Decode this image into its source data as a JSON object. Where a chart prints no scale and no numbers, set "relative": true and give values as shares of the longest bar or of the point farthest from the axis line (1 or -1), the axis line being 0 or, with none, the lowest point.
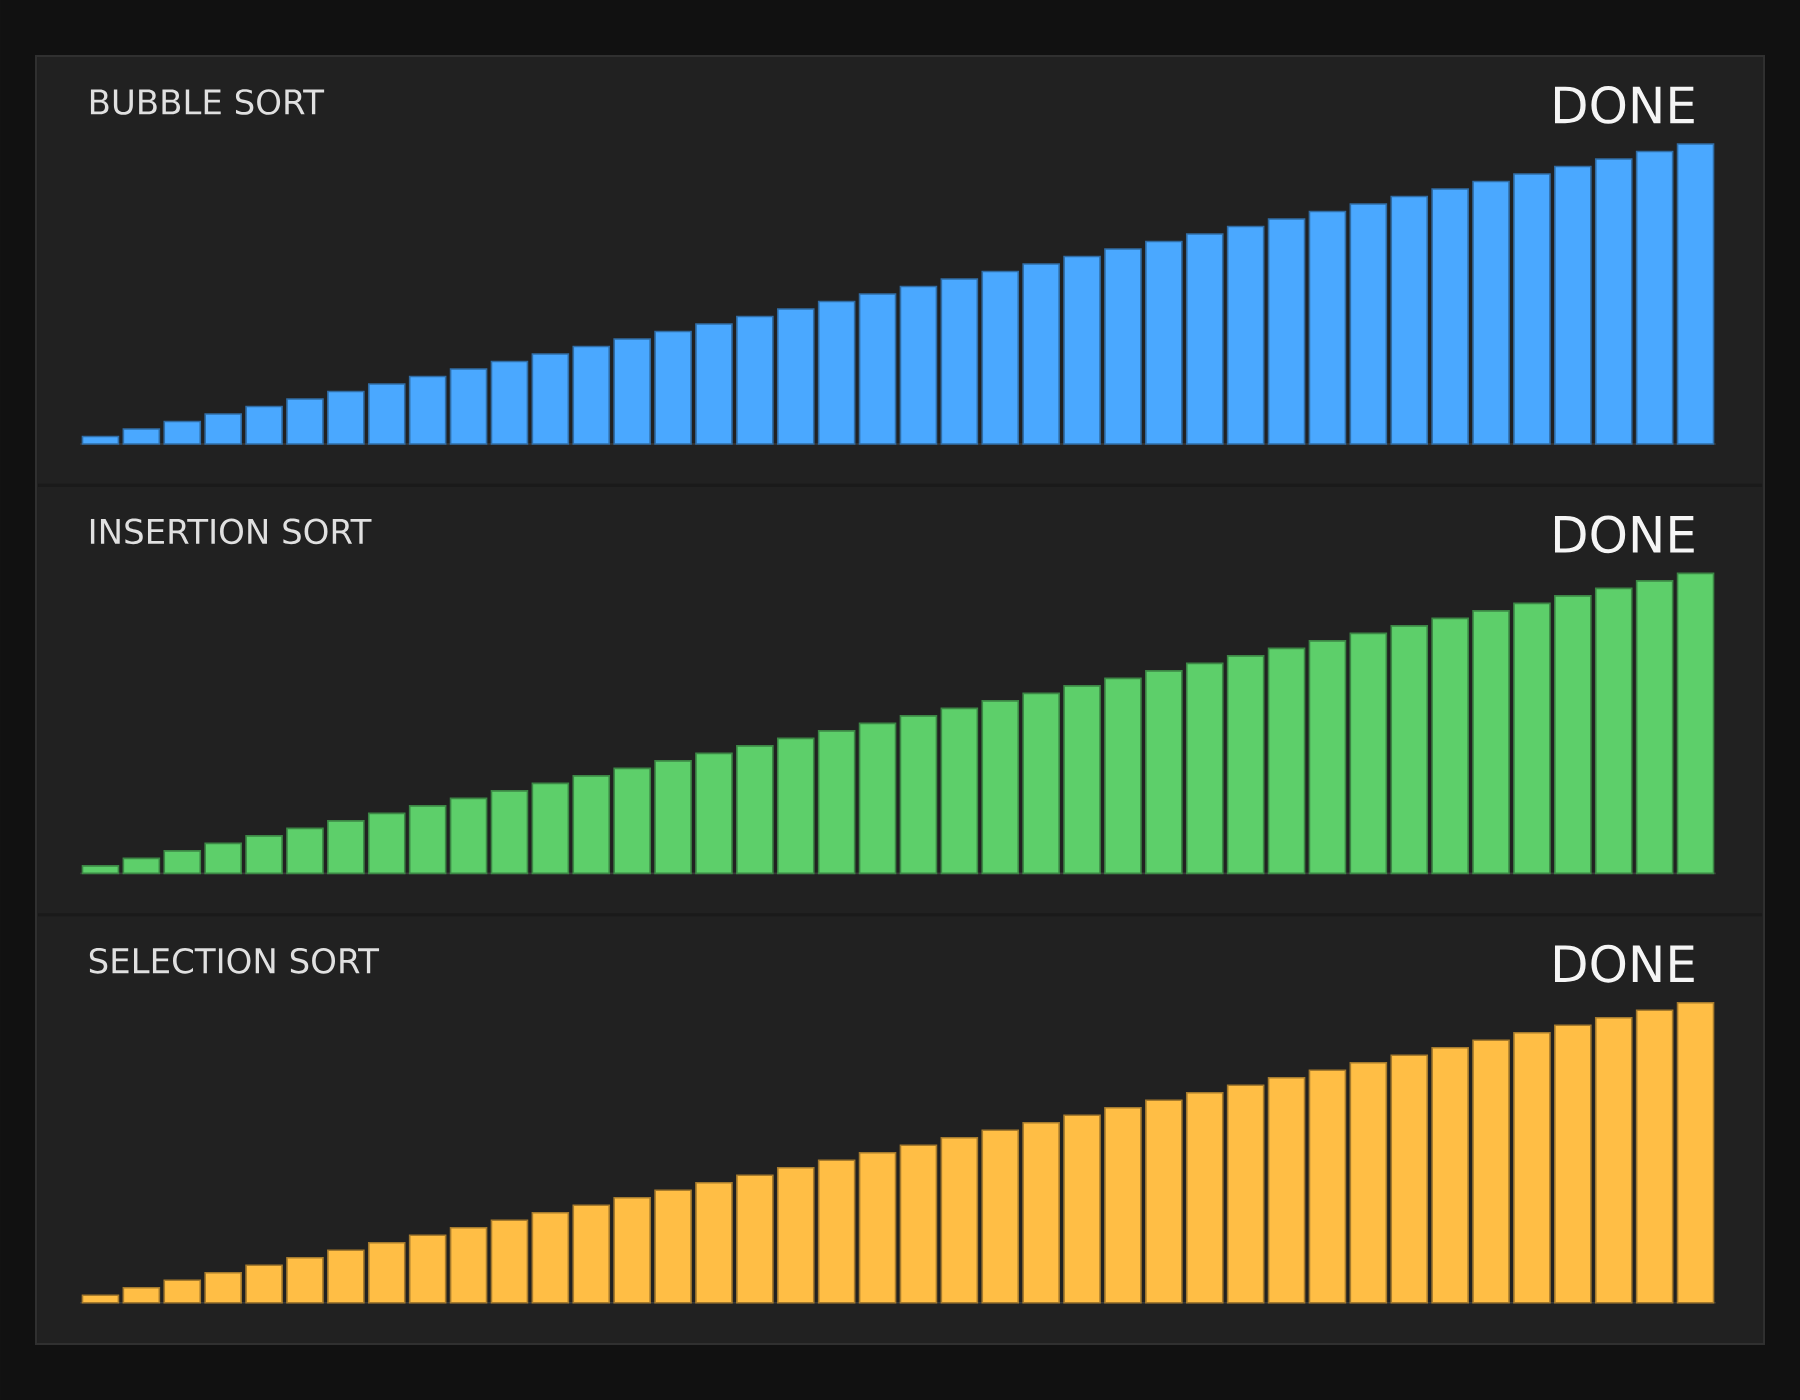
{
  "chart_data": [
    {
      "type": "bar",
      "title": "BUBBLE SORT",
      "annotations": [
        "DONE"
      ],
      "relative": true,
      "color": "#4aa8ff",
      "categories": [
        null,
        null,
        null,
        null,
        null,
        null,
        null,
        null,
        null,
        null,
        null,
        null,
        null,
        null,
        null,
        null,
        null,
        null,
        null,
        null,
        null,
        null,
        null,
        null,
        null,
        null,
        null,
        null,
        null,
        null,
        null,
        null,
        null,
        null,
        null,
        null,
        null,
        null,
        null,
        null
      ],
      "values": [
        0.025,
        0.05,
        0.075,
        0.1,
        0.125,
        0.15,
        0.175,
        0.2,
        0.225,
        0.25,
        0.275,
        0.3,
        0.325,
        0.35,
        0.375,
        0.4,
        0.425,
        0.45,
        0.475,
        0.5,
        0.525,
        0.55,
        0.575,
        0.6,
        0.625,
        0.65,
        0.675,
        0.7,
        0.725,
        0.75,
        0.775,
        0.8,
        0.825,
        0.85,
        0.875,
        0.9,
        0.925,
        0.95,
        0.975,
        1
      ]
    },
    {
      "type": "bar",
      "title": "INSERTION SORT",
      "annotations": [
        "DONE"
      ],
      "relative": true,
      "color": "#5dcf6a",
      "categories": [
        null,
        null,
        null,
        null,
        null,
        null,
        null,
        null,
        null,
        null,
        null,
        null,
        null,
        null,
        null,
        null,
        null,
        null,
        null,
        null,
        null,
        null,
        null,
        null,
        null,
        null,
        null,
        null,
        null,
        null,
        null,
        null,
        null,
        null,
        null,
        null,
        null,
        null,
        null,
        null
      ],
      "values": [
        0.025,
        0.05,
        0.075,
        0.1,
        0.125,
        0.15,
        0.175,
        0.2,
        0.225,
        0.25,
        0.275,
        0.3,
        0.325,
        0.35,
        0.375,
        0.4,
        0.425,
        0.45,
        0.475,
        0.5,
        0.525,
        0.55,
        0.575,
        0.6,
        0.625,
        0.65,
        0.675,
        0.7,
        0.725,
        0.75,
        0.775,
        0.8,
        0.825,
        0.85,
        0.875,
        0.9,
        0.925,
        0.95,
        0.975,
        1
      ]
    },
    {
      "type": "bar",
      "title": "SELECTION SORT",
      "annotations": [
        "DONE"
      ],
      "relative": true,
      "color": "#ffbe45",
      "categories": [
        null,
        null,
        null,
        null,
        null,
        null,
        null,
        null,
        null,
        null,
        null,
        null,
        null,
        null,
        null,
        null,
        null,
        null,
        null,
        null,
        null,
        null,
        null,
        null,
        null,
        null,
        null,
        null,
        null,
        null,
        null,
        null,
        null,
        null,
        null,
        null,
        null,
        null,
        null,
        null
      ],
      "values": [
        0.025,
        0.05,
        0.075,
        0.1,
        0.125,
        0.15,
        0.175,
        0.2,
        0.225,
        0.25,
        0.275,
        0.3,
        0.325,
        0.35,
        0.375,
        0.4,
        0.425,
        0.45,
        0.475,
        0.5,
        0.525,
        0.55,
        0.575,
        0.6,
        0.625,
        0.65,
        0.675,
        0.7,
        0.725,
        0.75,
        0.775,
        0.8,
        0.825,
        0.85,
        0.875,
        0.9,
        0.925,
        0.95,
        0.975,
        1
      ]
    }
  ]
}
